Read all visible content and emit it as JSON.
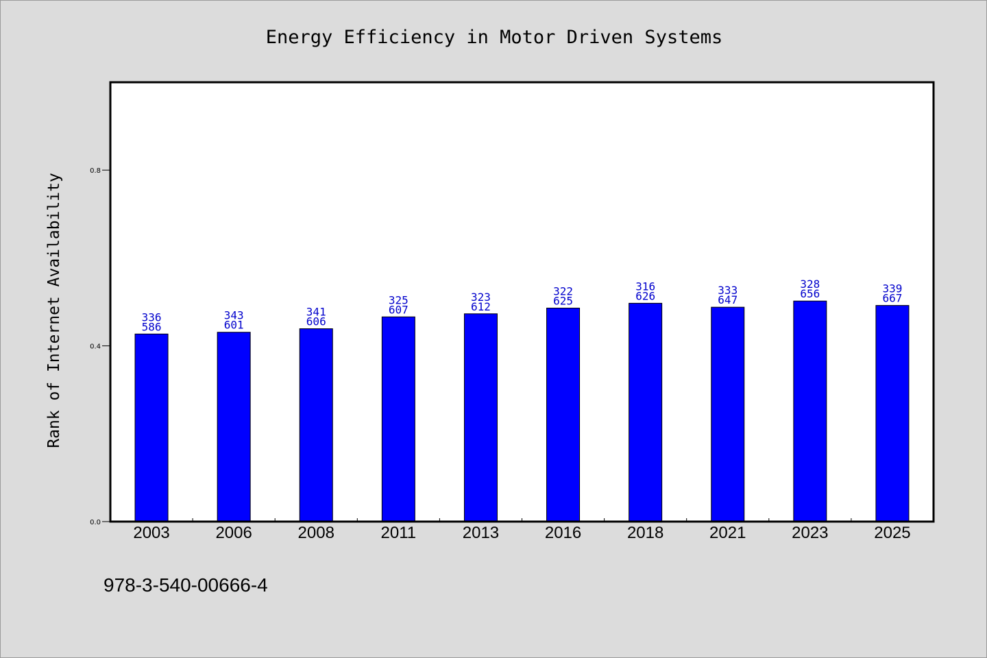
{
  "colors": {
    "background": "#dcdcdc",
    "plot_background": "#ffffff",
    "bar_fill": "#0000ff",
    "bar_stroke": "#000000",
    "data_label": "#0000cc",
    "axis": "#000000"
  },
  "footnote": "978-3-540-00666-4",
  "chart_data": {
    "type": "bar",
    "title": "Energy Efficiency in Motor Driven Systems",
    "xlabel": "",
    "ylabel": "Rank of Internet Availability",
    "categories": [
      "2003",
      "2006",
      "2008",
      "2011",
      "2013",
      "2016",
      "2018",
      "2021",
      "2023",
      "2025"
    ],
    "values": [
      0.427,
      0.431,
      0.439,
      0.466,
      0.473,
      0.486,
      0.497,
      0.488,
      0.502,
      0.492
    ],
    "data_labels": [
      [
        "336",
        "586"
      ],
      [
        "343",
        "601"
      ],
      [
        "341",
        "606"
      ],
      [
        "325",
        "607"
      ],
      [
        "323",
        "612"
      ],
      [
        "322",
        "625"
      ],
      [
        "316",
        "626"
      ],
      [
        "333",
        "647"
      ],
      [
        "328",
        "656"
      ],
      [
        "339",
        "667"
      ]
    ],
    "yticks": [
      {
        "value": 0.0,
        "label": "0.0"
      },
      {
        "value": 0.4,
        "label": "0.4"
      },
      {
        "value": 0.8,
        "label": "0.8"
      }
    ],
    "ylim": [
      0,
      1.0
    ],
    "grid": false,
    "legend": "none"
  }
}
